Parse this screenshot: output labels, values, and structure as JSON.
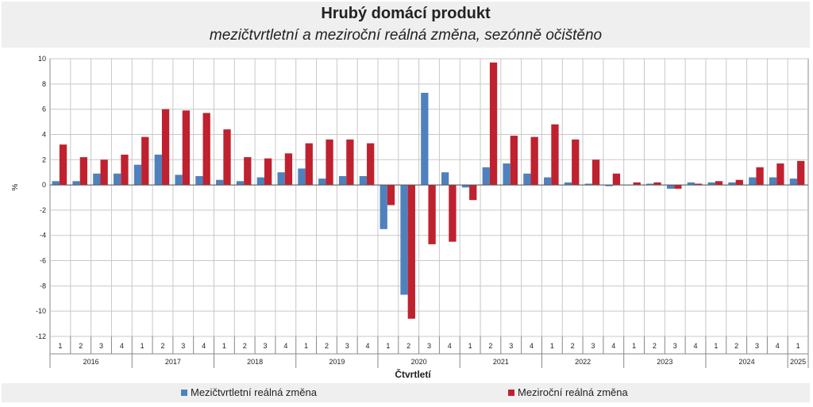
{
  "chart_data": {
    "type": "bar",
    "title": "Hrubý domácí produkt",
    "subtitle": "mezičtvrtletní a meziroční reálná změna, sezónně očištěno",
    "xlabel": "Čtvrtletí",
    "ylabel": "%",
    "ylim": [
      -12,
      10
    ],
    "yticks": [
      10,
      8,
      6,
      4,
      2,
      0,
      -2,
      -4,
      -6,
      -8,
      -10,
      -12
    ],
    "grid": true,
    "legend_position": "bottom",
    "years": [
      "2016",
      "2017",
      "2018",
      "2019",
      "2020",
      "2021",
      "2022",
      "2023",
      "2024",
      "2025"
    ],
    "quarters_per_year": [
      4,
      4,
      4,
      4,
      4,
      4,
      4,
      4,
      4,
      1
    ],
    "categories": [
      "1",
      "2",
      "3",
      "4",
      "1",
      "2",
      "3",
      "4",
      "1",
      "2",
      "3",
      "4",
      "1",
      "2",
      "3",
      "4",
      "1",
      "2",
      "3",
      "4",
      "1",
      "2",
      "3",
      "4",
      "1",
      "2",
      "3",
      "4",
      "1",
      "2",
      "3",
      "4",
      "1",
      "2",
      "3",
      "4",
      "1"
    ],
    "series": [
      {
        "name": "Mezičtvrtletní reálná změna",
        "color": "#4f81bd",
        "values": [
          0.3,
          0.3,
          0.9,
          0.9,
          1.6,
          2.4,
          0.8,
          0.7,
          0.4,
          0.3,
          0.6,
          1.0,
          1.3,
          0.5,
          0.7,
          0.7,
          -3.5,
          -8.7,
          7.3,
          1.0,
          -0.2,
          1.4,
          1.7,
          0.9,
          0.6,
          0.2,
          0.1,
          -0.1,
          0.0,
          0.1,
          -0.3,
          0.2,
          0.2,
          0.2,
          0.6,
          0.6,
          0.5
        ]
      },
      {
        "name": "Meziroční reálná změna",
        "color": "#c0212f",
        "values": [
          3.2,
          2.2,
          2.0,
          2.4,
          3.8,
          6.0,
          5.9,
          5.7,
          4.4,
          2.2,
          2.1,
          2.5,
          3.3,
          3.6,
          3.6,
          3.3,
          -1.6,
          -10.6,
          -4.7,
          -4.5,
          -1.2,
          9.7,
          3.9,
          3.8,
          4.8,
          3.6,
          2.0,
          0.9,
          0.2,
          0.2,
          -0.3,
          0.1,
          0.3,
          0.4,
          1.4,
          1.7,
          1.9
        ]
      }
    ]
  }
}
